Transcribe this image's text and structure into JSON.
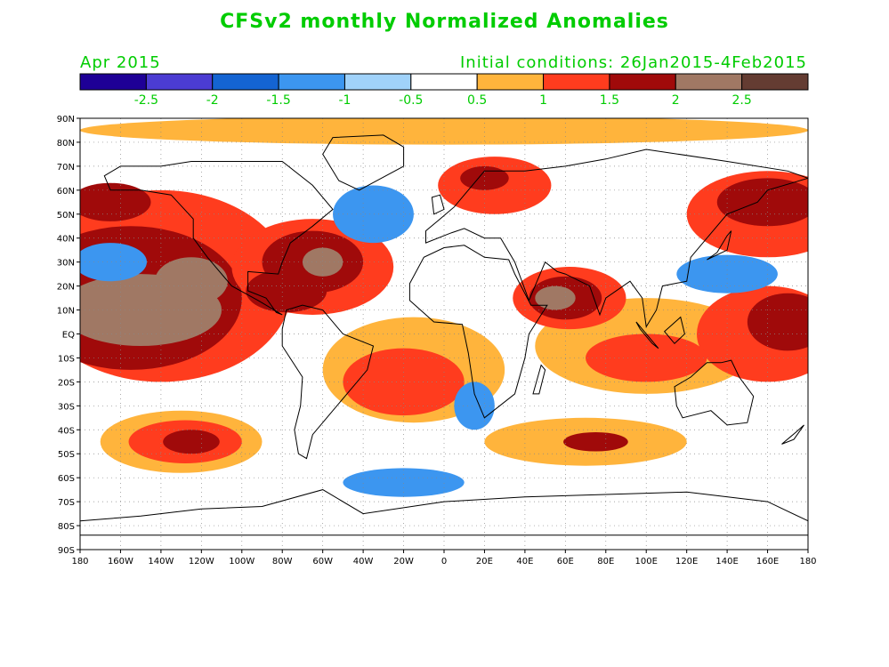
{
  "header": {
    "title": "CFSv2 monthly Normalized Anomalies",
    "month": "Apr 2015",
    "initial_conditions": "Initial conditions: 26Jan2015-4Feb2015"
  },
  "colors": {
    "label_green": "#00cc00",
    "bins": [
      "#1e0096",
      "#4b3cd2",
      "#1464d2",
      "#3c96f0",
      "#a0d2fa",
      "#ffffff",
      "#ffb43c",
      "#ff3c1e",
      "#a00a0a",
      "#a07864",
      "#643c32"
    ]
  },
  "legend": {
    "tick_labels": [
      "-2.5",
      "-2",
      "-1.5",
      "-1",
      "-0.5",
      "0.5",
      "1",
      "1.5",
      "2",
      "2.5"
    ]
  },
  "axes": {
    "lat_labels": [
      "90N",
      "80N",
      "70N",
      "60N",
      "50N",
      "40N",
      "30N",
      "20N",
      "10N",
      "EQ",
      "10S",
      "20S",
      "30S",
      "40S",
      "50S",
      "60S",
      "70S",
      "80S",
      "90S"
    ],
    "lon_labels": [
      "180",
      "160W",
      "140W",
      "120W",
      "100W",
      "80W",
      "60W",
      "40W",
      "20W",
      "0",
      "20E",
      "40E",
      "60E",
      "80E",
      "100E",
      "120E",
      "140E",
      "160E",
      "180"
    ]
  },
  "chart_data": {
    "type": "heatmap",
    "lon_range": [
      -180,
      180
    ],
    "lat_range": [
      -90,
      90
    ],
    "anomaly_regions": [
      {
        "lon": -150,
        "lat": 10,
        "rx": 40,
        "ry": 15,
        "bin": 9
      },
      {
        "lon": -125,
        "lat": 22,
        "rx": 18,
        "ry": 10,
        "bin": 9
      },
      {
        "lon": -155,
        "lat": 15,
        "rx": 55,
        "ry": 30,
        "bin": 8
      },
      {
        "lon": -165,
        "lat": 55,
        "rx": 20,
        "ry": 8,
        "bin": 8
      },
      {
        "lon": -140,
        "lat": 20,
        "rx": 65,
        "ry": 40,
        "bin": 7
      },
      {
        "lon": -165,
        "lat": 30,
        "rx": 18,
        "ry": 8,
        "bin": 3
      },
      {
        "lon": -125,
        "lat": -45,
        "rx": 14,
        "ry": 5,
        "bin": 8
      },
      {
        "lon": -128,
        "lat": -45,
        "rx": 28,
        "ry": 9,
        "bin": 7
      },
      {
        "lon": -130,
        "lat": -45,
        "rx": 40,
        "ry": 13,
        "bin": 6
      },
      {
        "lon": -60,
        "lat": 30,
        "rx": 10,
        "ry": 6,
        "bin": 9
      },
      {
        "lon": -65,
        "lat": 30,
        "rx": 25,
        "ry": 13,
        "bin": 8
      },
      {
        "lon": -65,
        "lat": 28,
        "rx": 40,
        "ry": 20,
        "bin": 7
      },
      {
        "lon": -78,
        "lat": 18,
        "rx": 20,
        "ry": 9,
        "bin": 8
      },
      {
        "lon": -20,
        "lat": -20,
        "rx": 30,
        "ry": 14,
        "bin": 7
      },
      {
        "lon": -15,
        "lat": -15,
        "rx": 45,
        "ry": 22,
        "bin": 6
      },
      {
        "lon": 55,
        "lat": 15,
        "rx": 10,
        "ry": 5,
        "bin": 9
      },
      {
        "lon": 60,
        "lat": 15,
        "rx": 18,
        "ry": 9,
        "bin": 8
      },
      {
        "lon": 62,
        "lat": 15,
        "rx": 28,
        "ry": 13,
        "bin": 7
      },
      {
        "lon": 20,
        "lat": 65,
        "rx": 12,
        "ry": 5,
        "bin": 8
      },
      {
        "lon": 25,
        "lat": 62,
        "rx": 28,
        "ry": 12,
        "bin": 7
      },
      {
        "lon": 100,
        "lat": -10,
        "rx": 30,
        "ry": 10,
        "bin": 7
      },
      {
        "lon": 100,
        "lat": -5,
        "rx": 55,
        "ry": 20,
        "bin": 6
      },
      {
        "lon": 75,
        "lat": -45,
        "rx": 16,
        "ry": 4,
        "bin": 8
      },
      {
        "lon": 70,
        "lat": -45,
        "rx": 50,
        "ry": 10,
        "bin": 6
      },
      {
        "lon": 170,
        "lat": 5,
        "rx": 20,
        "ry": 12,
        "bin": 8
      },
      {
        "lon": 160,
        "lat": 0,
        "rx": 35,
        "ry": 20,
        "bin": 7
      },
      {
        "lon": 160,
        "lat": 55,
        "rx": 25,
        "ry": 10,
        "bin": 8
      },
      {
        "lon": 160,
        "lat": 50,
        "rx": 40,
        "ry": 18,
        "bin": 7
      },
      {
        "lon": 0,
        "lat": 85,
        "rx": 180,
        "ry": 6,
        "bin": 6
      },
      {
        "lon": 140,
        "lat": 25,
        "rx": 25,
        "ry": 8,
        "bin": 3
      },
      {
        "lon": -35,
        "lat": 50,
        "rx": 20,
        "ry": 12,
        "bin": 3
      },
      {
        "lon": -20,
        "lat": -62,
        "rx": 30,
        "ry": 6,
        "bin": 3
      },
      {
        "lon": 15,
        "lat": -30,
        "rx": 10,
        "ry": 10,
        "bin": 3
      }
    ],
    "continents": [
      {
        "name": "North America",
        "points": [
          [
            -168,
            66
          ],
          [
            -160,
            70
          ],
          [
            -140,
            70
          ],
          [
            -125,
            72
          ],
          [
            -100,
            72
          ],
          [
            -80,
            72
          ],
          [
            -65,
            62
          ],
          [
            -55,
            52
          ],
          [
            -65,
            45
          ],
          [
            -76,
            38
          ],
          [
            -80,
            30
          ],
          [
            -82,
            25
          ],
          [
            -97,
            26
          ],
          [
            -97,
            18
          ],
          [
            -88,
            15
          ],
          [
            -83,
            9
          ],
          [
            -80,
            8
          ],
          [
            -92,
            14
          ],
          [
            -105,
            20
          ],
          [
            -117,
            32
          ],
          [
            -124,
            40
          ],
          [
            -124,
            48
          ],
          [
            -135,
            58
          ],
          [
            -150,
            60
          ],
          [
            -165,
            60
          ]
        ]
      },
      {
        "name": "Greenland",
        "points": [
          [
            -55,
            82
          ],
          [
            -30,
            83
          ],
          [
            -20,
            78
          ],
          [
            -20,
            70
          ],
          [
            -42,
            60
          ],
          [
            -52,
            64
          ],
          [
            -60,
            75
          ]
        ]
      },
      {
        "name": "South America",
        "points": [
          [
            -78,
            10
          ],
          [
            -70,
            12
          ],
          [
            -60,
            10
          ],
          [
            -50,
            0
          ],
          [
            -35,
            -5
          ],
          [
            -38,
            -15
          ],
          [
            -48,
            -25
          ],
          [
            -58,
            -35
          ],
          [
            -65,
            -42
          ],
          [
            -68,
            -52
          ],
          [
            -72,
            -50
          ],
          [
            -74,
            -40
          ],
          [
            -71,
            -30
          ],
          [
            -70,
            -18
          ],
          [
            -80,
            -5
          ],
          [
            -80,
            2
          ]
        ]
      },
      {
        "name": "Africa",
        "points": [
          [
            -17,
            21
          ],
          [
            -10,
            32
          ],
          [
            0,
            36
          ],
          [
            10,
            37
          ],
          [
            20,
            32
          ],
          [
            32,
            31
          ],
          [
            35,
            25
          ],
          [
            43,
            12
          ],
          [
            51,
            12
          ],
          [
            42,
            0
          ],
          [
            40,
            -10
          ],
          [
            35,
            -25
          ],
          [
            20,
            -35
          ],
          [
            15,
            -25
          ],
          [
            12,
            -8
          ],
          [
            9,
            4
          ],
          [
            -5,
            5
          ],
          [
            -17,
            14
          ]
        ]
      },
      {
        "name": "Eurasia",
        "points": [
          [
            -9,
            38
          ],
          [
            -9,
            43
          ],
          [
            -2,
            48
          ],
          [
            5,
            53
          ],
          [
            10,
            58
          ],
          [
            20,
            68
          ],
          [
            40,
            68
          ],
          [
            60,
            70
          ],
          [
            80,
            73
          ],
          [
            100,
            77
          ],
          [
            140,
            72
          ],
          [
            170,
            68
          ],
          [
            180,
            65
          ],
          [
            160,
            60
          ],
          [
            155,
            55
          ],
          [
            140,
            50
          ],
          [
            130,
            40
          ],
          [
            122,
            32
          ],
          [
            120,
            22
          ],
          [
            108,
            20
          ],
          [
            105,
            10
          ],
          [
            100,
            3
          ],
          [
            98,
            15
          ],
          [
            92,
            22
          ],
          [
            80,
            15
          ],
          [
            77,
            8
          ],
          [
            72,
            20
          ],
          [
            60,
            25
          ],
          [
            56,
            26
          ],
          [
            50,
            30
          ],
          [
            42,
            14
          ],
          [
            35,
            30
          ],
          [
            28,
            40
          ],
          [
            20,
            40
          ],
          [
            10,
            44
          ],
          [
            3,
            42
          ]
        ]
      },
      {
        "name": "Australia",
        "points": [
          [
            114,
            -22
          ],
          [
            122,
            -18
          ],
          [
            130,
            -12
          ],
          [
            137,
            -12
          ],
          [
            142,
            -11
          ],
          [
            146,
            -18
          ],
          [
            153,
            -26
          ],
          [
            150,
            -37
          ],
          [
            140,
            -38
          ],
          [
            132,
            -32
          ],
          [
            118,
            -35
          ],
          [
            115,
            -30
          ]
        ]
      },
      {
        "name": "Antarctica",
        "points": [
          [
            -180,
            -84
          ],
          [
            -180,
            -78
          ],
          [
            -150,
            -76
          ],
          [
            -120,
            -73
          ],
          [
            -90,
            -72
          ],
          [
            -60,
            -65
          ],
          [
            -40,
            -75
          ],
          [
            0,
            -70
          ],
          [
            40,
            -68
          ],
          [
            80,
            -67
          ],
          [
            120,
            -66
          ],
          [
            160,
            -70
          ],
          [
            180,
            -78
          ],
          [
            180,
            -84
          ]
        ]
      },
      {
        "name": "Greater Britain",
        "points": [
          [
            -5,
            50
          ],
          [
            0,
            52
          ],
          [
            -2,
            58
          ],
          [
            -6,
            57
          ]
        ]
      },
      {
        "name": "Japan",
        "points": [
          [
            130,
            31
          ],
          [
            140,
            35
          ],
          [
            142,
            43
          ],
          [
            140,
            41
          ],
          [
            135,
            34
          ]
        ]
      },
      {
        "name": "Madagascar",
        "points": [
          [
            44,
            -25
          ],
          [
            47,
            -25
          ],
          [
            50,
            -15
          ],
          [
            48,
            -13
          ]
        ]
      },
      {
        "name": "New Zealand",
        "points": [
          [
            167,
            -46
          ],
          [
            174,
            -41
          ],
          [
            178,
            -38
          ],
          [
            173,
            -44
          ]
        ]
      },
      {
        "name": "Borneo",
        "points": [
          [
            109,
            1
          ],
          [
            117,
            7
          ],
          [
            119,
            0
          ],
          [
            114,
            -4
          ]
        ]
      },
      {
        "name": "Sumatra",
        "points": [
          [
            95,
            5
          ],
          [
            106,
            -6
          ],
          [
            103,
            -4
          ],
          [
            97,
            2
          ]
        ]
      }
    ]
  }
}
